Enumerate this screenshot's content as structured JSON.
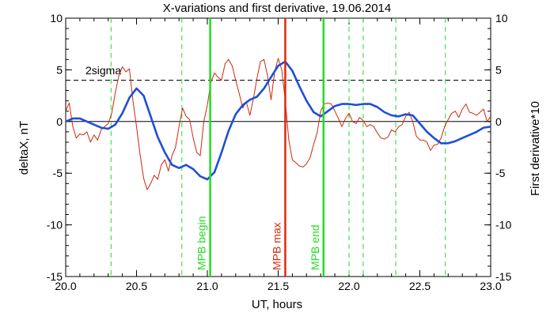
{
  "chart_data": {
    "type": "line",
    "title": "X-variations and first derivative, 19.06.2014",
    "xlabel": "UT, hours",
    "ylabel_left": "deltaX, nT",
    "ylabel_right": "First derivative*10",
    "xlim": [
      20.0,
      23.0
    ],
    "ylim_left": [
      -15,
      10
    ],
    "ylim_right": [
      -15,
      10
    ],
    "x_ticks": [
      "20.0",
      "20.5",
      "21.0",
      "21.5",
      "22.0",
      "22.5",
      "23.0"
    ],
    "y_ticks_left": [
      "-15",
      "-10",
      "-5",
      "0",
      "5",
      "10"
    ],
    "y_ticks_right": [
      "-15",
      "-10",
      "-5",
      "0",
      "5",
      "10"
    ],
    "threshold": {
      "label": "2sigma",
      "value": 4,
      "style": "dashed"
    },
    "zero_line": 0,
    "colors": {
      "deltaX": "#1f4fd6",
      "derivative": "#cc2a0e",
      "green": "#22dd22",
      "max": "#dd2a0e",
      "black": "#000000"
    },
    "series": [
      {
        "color_key": "deltaX",
        "x": [
          20.0,
          20.05,
          20.1,
          20.15,
          20.2,
          20.25,
          20.3,
          20.35,
          20.4,
          20.45,
          20.5,
          20.55,
          20.6,
          20.65,
          20.7,
          20.75,
          20.8,
          20.85,
          20.9,
          20.95,
          21.0,
          21.05,
          21.1,
          21.15,
          21.2,
          21.25,
          21.3,
          21.35,
          21.4,
          21.45,
          21.5,
          21.55,
          21.6,
          21.65,
          21.7,
          21.75,
          21.8,
          21.85,
          21.9,
          21.95,
          22.0,
          22.05,
          22.1,
          22.15,
          22.2,
          22.25,
          22.3,
          22.35,
          22.4,
          22.45,
          22.5,
          22.55,
          22.6,
          22.65,
          22.7,
          22.75,
          22.8,
          22.85,
          22.9,
          22.95,
          23.0
        ],
        "y": [
          0.0,
          0.3,
          0.3,
          0.0,
          -0.3,
          -0.6,
          -0.7,
          -0.3,
          0.8,
          2.3,
          3.2,
          2.5,
          0.5,
          -1.5,
          -3.0,
          -4.2,
          -4.5,
          -4.2,
          -4.6,
          -5.3,
          -5.6,
          -4.9,
          -3.0,
          -0.9,
          0.7,
          1.6,
          2.1,
          2.4,
          3.2,
          4.3,
          5.4,
          5.8,
          4.9,
          3.4,
          2.0,
          0.9,
          0.5,
          1.0,
          1.5,
          1.7,
          1.7,
          1.6,
          1.7,
          1.7,
          1.4,
          0.9,
          0.6,
          0.5,
          0.7,
          0.6,
          -0.2,
          -1.0,
          -1.6,
          -2.1,
          -2.1,
          -1.9,
          -1.6,
          -1.3,
          -1.0,
          -0.6,
          -0.5
        ]
      },
      {
        "color_key": "derivative",
        "x": [
          20.0,
          20.025,
          20.05,
          20.075,
          20.1,
          20.125,
          20.15,
          20.175,
          20.2,
          20.225,
          20.25,
          20.275,
          20.3,
          20.325,
          20.35,
          20.375,
          20.4,
          20.425,
          20.45,
          20.475,
          20.5,
          20.525,
          20.55,
          20.575,
          20.6,
          20.625,
          20.65,
          20.675,
          20.7,
          20.725,
          20.75,
          20.775,
          20.8,
          20.825,
          20.85,
          20.875,
          20.9,
          20.925,
          20.95,
          20.975,
          21.0,
          21.025,
          21.05,
          21.075,
          21.1,
          21.125,
          21.15,
          21.175,
          21.2,
          21.225,
          21.25,
          21.275,
          21.3,
          21.325,
          21.35,
          21.375,
          21.4,
          21.425,
          21.45,
          21.475,
          21.5,
          21.525,
          21.55,
          21.575,
          21.6,
          21.625,
          21.65,
          21.675,
          21.7,
          21.725,
          21.75,
          21.775,
          21.8,
          21.825,
          21.85,
          21.875,
          21.9,
          21.925,
          21.95,
          21.975,
          22.0,
          22.025,
          22.05,
          22.075,
          22.1,
          22.125,
          22.15,
          22.175,
          22.2,
          22.225,
          22.25,
          22.275,
          22.3,
          22.325,
          22.35,
          22.375,
          22.4,
          22.425,
          22.45,
          22.475,
          22.5,
          22.525,
          22.55,
          22.575,
          22.6,
          22.625,
          22.65,
          22.675,
          22.7,
          22.725,
          22.75,
          22.775,
          22.8,
          22.825,
          22.85,
          22.875,
          22.9,
          22.925,
          22.95,
          22.975,
          23.0
        ],
        "y": [
          1.0,
          1.8,
          -0.5,
          -1.6,
          -1.2,
          -1.3,
          -1.0,
          -2.0,
          -1.3,
          -1.8,
          -0.8,
          -0.5,
          -0.2,
          0.8,
          2.8,
          4.4,
          5.3,
          4.8,
          5.1,
          2.0,
          -0.5,
          -3.2,
          -5.5,
          -6.6,
          -6.0,
          -5.2,
          -5.6,
          -4.2,
          -3.7,
          -4.8,
          -3.3,
          -2.5,
          -0.5,
          1.3,
          0.5,
          0.2,
          -1.6,
          -3.0,
          -3.3,
          0.0,
          1.6,
          3.8,
          4.7,
          4.3,
          4.0,
          5.6,
          6.0,
          5.4,
          4.0,
          2.7,
          1.3,
          1.9,
          0.6,
          2.2,
          4.2,
          5.8,
          6.0,
          4.4,
          2.1,
          4.8,
          6.1,
          5.0,
          2.0,
          -1.8,
          -3.7,
          -4.0,
          -4.3,
          -4.4,
          -4.1,
          -3.5,
          -2.2,
          -1.1,
          1.0,
          1.7,
          1.8,
          1.7,
          1.0,
          0.3,
          -0.5,
          0.3,
          0.8,
          0.0,
          -0.2,
          0.4,
          0.1,
          -0.5,
          -0.3,
          -0.5,
          -1.1,
          -1.6,
          -1.7,
          -1.5,
          -0.8,
          -1.0,
          -0.5,
          -0.3,
          0.5,
          0.9,
          0.0,
          -1.4,
          -1.8,
          -1.8,
          -2.0,
          -2.8,
          -2.3,
          -2.2,
          -1.6,
          -0.5,
          0.2,
          0.8,
          1.0,
          0.4,
          1.2,
          1.7,
          0.9,
          0.8,
          0.6,
          0.9,
          1.2,
          0.0,
          0.5
        ]
      }
    ],
    "dashed_verticals": [
      20.32,
      20.82,
      22.0,
      22.1,
      22.33,
      22.68
    ],
    "markers": [
      {
        "x": 21.02,
        "label": "MPB begin",
        "color_key": "green"
      },
      {
        "x": 21.55,
        "label": "MPB max",
        "color_key": "max"
      },
      {
        "x": 21.82,
        "label": "MPB end",
        "color_key": "green"
      }
    ],
    "grid": false
  }
}
